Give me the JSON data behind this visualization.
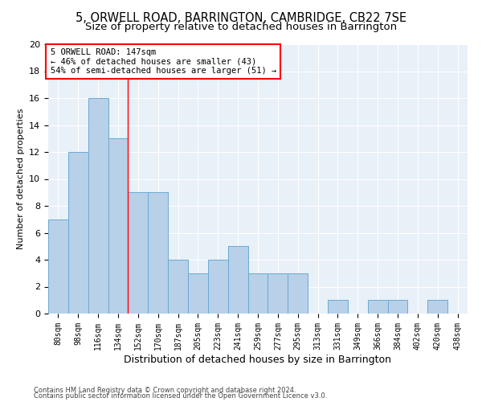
{
  "title": "5, ORWELL ROAD, BARRINGTON, CAMBRIDGE, CB22 7SE",
  "subtitle": "Size of property relative to detached houses in Barrington",
  "xlabel": "Distribution of detached houses by size in Barrington",
  "ylabel": "Number of detached properties",
  "bar_labels": [
    "80sqm",
    "98sqm",
    "116sqm",
    "134sqm",
    "152sqm",
    "170sqm",
    "187sqm",
    "205sqm",
    "223sqm",
    "241sqm",
    "259sqm",
    "277sqm",
    "295sqm",
    "313sqm",
    "331sqm",
    "349sqm",
    "366sqm",
    "384sqm",
    "402sqm",
    "420sqm",
    "438sqm"
  ],
  "bar_values": [
    7,
    12,
    16,
    13,
    9,
    9,
    4,
    3,
    4,
    5,
    3,
    3,
    3,
    0,
    1,
    0,
    1,
    1,
    0,
    1,
    0
  ],
  "bar_color": "#b8d0e8",
  "bar_edgecolor": "#6aaad4",
  "reference_line_x": 3.5,
  "annotation_title": "5 ORWELL ROAD: 147sqm",
  "annotation_line1": "← 46% of detached houses are smaller (43)",
  "annotation_line2": "54% of semi-detached houses are larger (51) →",
  "ylim": [
    0,
    20
  ],
  "yticks": [
    0,
    2,
    4,
    6,
    8,
    10,
    12,
    14,
    16,
    18,
    20
  ],
  "footnote1": "Contains HM Land Registry data © Crown copyright and database right 2024.",
  "footnote2": "Contains public sector information licensed under the Open Government Licence v3.0.",
  "title_fontsize": 10.5,
  "subtitle_fontsize": 9.5,
  "xlabel_fontsize": 9,
  "ylabel_fontsize": 8,
  "annotation_fontsize": 7.5,
  "tick_fontsize": 7,
  "footnote_fontsize": 6,
  "bg_color": "#e8f0f8",
  "fig_bg_color": "#ffffff"
}
